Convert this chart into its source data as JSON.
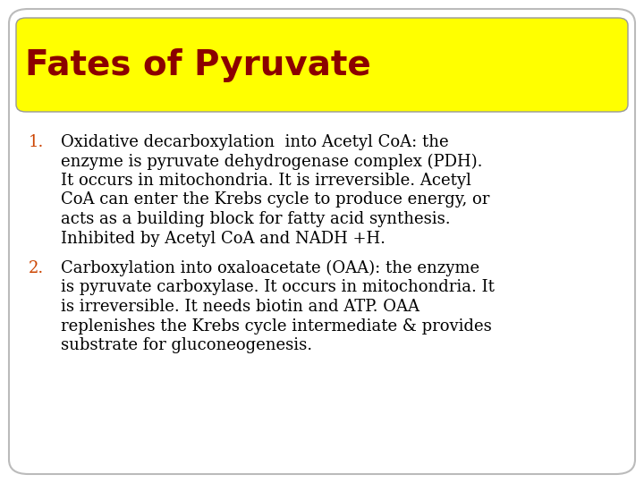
{
  "title": "Fates of Pyruvate",
  "title_color": "#8B0000",
  "title_bg_color": "#FFFF00",
  "bg_color": "#FFFFFF",
  "border_color": "#CCCCCC",
  "number_color": "#CC4400",
  "text_color": "#000000",
  "item1_number": "1.",
  "item1_lines": [
    "Oxidative decarboxylation  into Acetyl CoA: the",
    "enzyme is pyruvate dehydrogenase complex (PDH).",
    "It occurs in mitochondria. It is irreversible. Acetyl",
    "CoA can enter the Krebs cycle to produce energy, or",
    "acts as a building block for fatty acid synthesis.",
    "Inhibited by Acetyl CoA and NADH +H."
  ],
  "item2_number": "2.",
  "item2_lines": [
    "Carboxylation into oxaloacetate (OAA): the enzyme",
    "is pyruvate carboxylase. It occurs in mitochondria. It",
    "is irreversible. It needs biotin and ATP. OAA",
    "replenishes the Krebs cycle intermediate & provides",
    "substrate for gluconeogenesis."
  ],
  "title_font": "Arial Narrow",
  "body_font": "DejaVu Serif",
  "number_font": "DejaVu Serif",
  "title_fontsize": 28,
  "body_fontsize": 13,
  "number_fontsize": 13
}
